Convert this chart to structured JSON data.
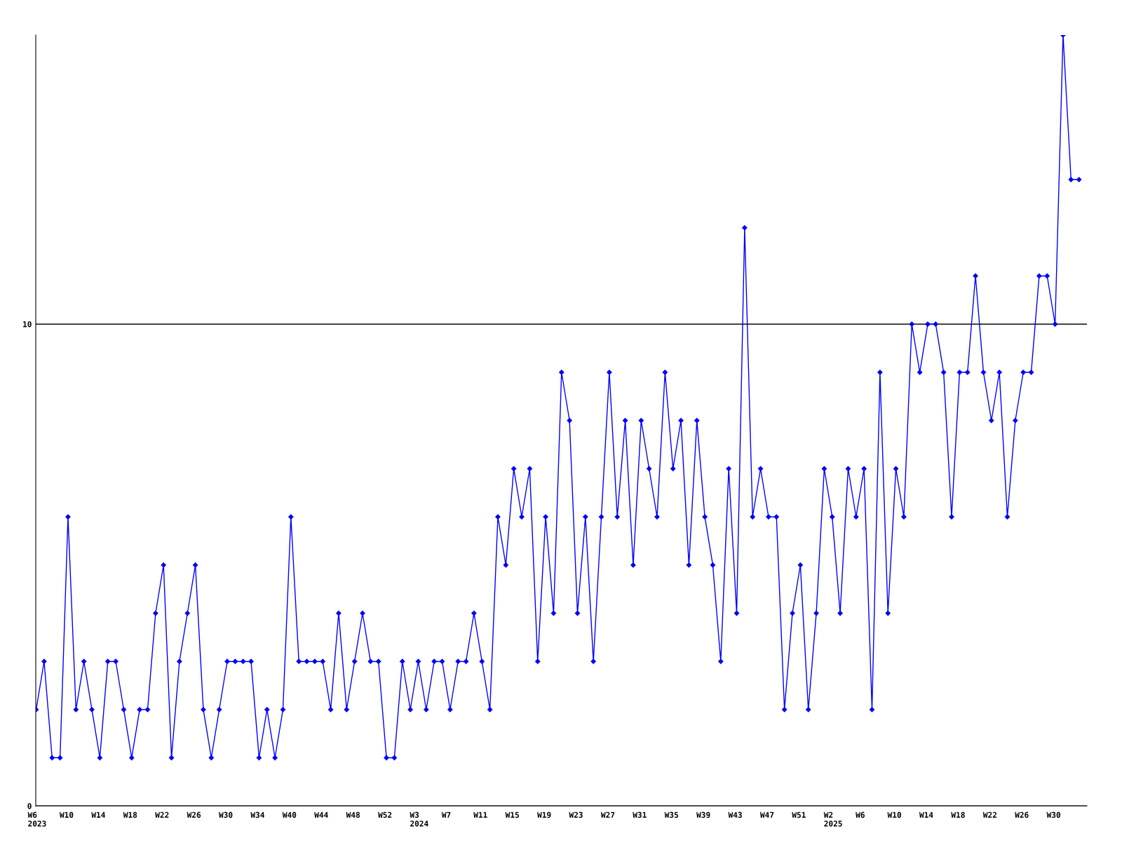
{
  "chart_data": {
    "type": "line",
    "categories": [
      "W6\n2023",
      null,
      null,
      null,
      "W10",
      null,
      null,
      null,
      "W14",
      null,
      null,
      null,
      "W18",
      null,
      null,
      null,
      "W22",
      null,
      null,
      null,
      "W26",
      null,
      null,
      null,
      "W30",
      null,
      null,
      null,
      "W34",
      null,
      null,
      null,
      "W40",
      null,
      null,
      null,
      "W44",
      null,
      null,
      null,
      "W48",
      null,
      null,
      null,
      "W52",
      null,
      null,
      null,
      "W3\n2024",
      null,
      null,
      null,
      "W7",
      null,
      null,
      null,
      "W11",
      null,
      null,
      null,
      "W15",
      null,
      null,
      null,
      "W19",
      null,
      null,
      null,
      "W23",
      null,
      null,
      null,
      "W27",
      null,
      null,
      null,
      "W31",
      null,
      null,
      null,
      "W35",
      null,
      null,
      null,
      "W39",
      null,
      null,
      null,
      "W43",
      null,
      null,
      null,
      "W47",
      null,
      null,
      null,
      "W51",
      null,
      null,
      null,
      "W2\n2025",
      null,
      null,
      null,
      "W6",
      null,
      null,
      null,
      "W10",
      null,
      null,
      null,
      "W14",
      null,
      null,
      null,
      "W18",
      null,
      null,
      null,
      "W22",
      null,
      null,
      null,
      "W26",
      null,
      null,
      null,
      "W30",
      null,
      null,
      null
    ],
    "series": [
      {
        "color": "#0000ff",
        "values": [
          2,
          3,
          1,
          1,
          6,
          2,
          3,
          2,
          1,
          3,
          3,
          2,
          1,
          2,
          2,
          4,
          5,
          1,
          3,
          4,
          5,
          2,
          1,
          2,
          3,
          3,
          3,
          3,
          1,
          2,
          1,
          2,
          6,
          3,
          3,
          3,
          3,
          2,
          4,
          2,
          3,
          4,
          3,
          3,
          1,
          1,
          3,
          2,
          3,
          2,
          3,
          3,
          2,
          3,
          3,
          4,
          3,
          2,
          6,
          5,
          7,
          6,
          7,
          3,
          6,
          4,
          9,
          8,
          4,
          6,
          3,
          6,
          9,
          6,
          8,
          5,
          8,
          7,
          6,
          9,
          7,
          8,
          5,
          8,
          6,
          5,
          3,
          7,
          4,
          12,
          6,
          7,
          6,
          6,
          2,
          4,
          5,
          2,
          4,
          7,
          6,
          4,
          7,
          6,
          7,
          2,
          9,
          4,
          7,
          6,
          10,
          9,
          10,
          10,
          9,
          6,
          9,
          9,
          11,
          9,
          8,
          9,
          6,
          8,
          9,
          9,
          11,
          11,
          10,
          16,
          13,
          13
        ]
      }
    ],
    "ylim": [
      0,
      16
    ],
    "yticks": [
      0,
      10
    ],
    "grid": "y",
    "marker": "diamond",
    "line_style": "solid",
    "legend": false
  }
}
